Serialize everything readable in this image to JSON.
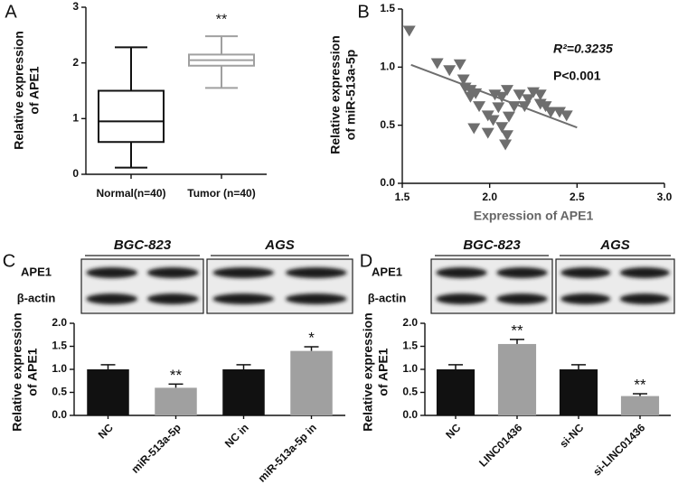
{
  "chart_data": [
    {
      "type": "box",
      "panel": "A",
      "categories": [
        "Normal(n=40)",
        "Tumor (n=40)"
      ],
      "boxes": [
        {
          "min": 0.12,
          "q1": 0.58,
          "median": 0.95,
          "q3": 1.5,
          "max": 2.28
        },
        {
          "min": 1.55,
          "q1": 1.95,
          "median": 2.05,
          "q3": 2.15,
          "max": 2.48
        }
      ],
      "colors": [
        "#111111",
        "#a0a0a0"
      ],
      "significance": [
        null,
        "**"
      ],
      "y_label": [
        "Relative expression",
        "of APE1"
      ],
      "ylim": [
        0,
        3
      ],
      "yticks": [
        0,
        1,
        2,
        3
      ]
    },
    {
      "type": "scatter",
      "panel": "B",
      "x": [
        1.54,
        1.7,
        1.83,
        1.77,
        1.85,
        1.86,
        1.89,
        1.92,
        1.89,
        1.94,
        1.99,
        1.91,
        1.99,
        2.02,
        2.05,
        2.07,
        2.1,
        2.11,
        2.07,
        2.1,
        2.09,
        2.14,
        2.17,
        2.2,
        2.22,
        2.25,
        2.29,
        2.32,
        2.35,
        2.4,
        2.44,
        2.29,
        2.03
      ],
      "y": [
        1.31,
        1.03,
        1.02,
        0.97,
        0.89,
        0.82,
        0.8,
        0.77,
        0.74,
        0.66,
        0.58,
        0.47,
        0.43,
        0.54,
        0.65,
        0.74,
        0.8,
        0.57,
        0.48,
        0.41,
        0.33,
        0.66,
        0.76,
        0.66,
        0.72,
        0.78,
        0.76,
        0.66,
        0.61,
        0.61,
        0.58,
        0.68,
        0.76
      ],
      "color": "#6e6e6e",
      "fit": {
        "x": [
          1.55,
          2.5
        ],
        "y": [
          1.02,
          0.48
        ],
        "color": "#6e6e6e"
      },
      "annotations": [
        "R²=0.3235",
        "P<0.001"
      ],
      "x_label": "Expression of APE1",
      "y_label": [
        "Relative expression",
        "of miR-513a-5p"
      ],
      "xlim": [
        1.5,
        3.0
      ],
      "xticks": [
        1.5,
        {
          "value": 2,
          "label": "2.0"
        },
        2.5,
        {
          "value": 3,
          "label": "3.0"
        }
      ],
      "ylim": [
        0,
        1.5
      ],
      "yticks": [
        {
          "value": 0,
          "label": "0.0"
        },
        0.5,
        {
          "value": 1,
          "label": "1.0"
        },
        1.5
      ]
    },
    {
      "type": "bar",
      "panel": "C",
      "blot": {
        "groups": [
          "BGC-823",
          "AGS"
        ],
        "rows": [
          "APE1",
          "β-actin"
        ]
      },
      "categories": [
        "NC",
        "miR-513a-5p",
        "NC in",
        "miR-513a-5p in"
      ],
      "values": [
        1.0,
        0.6,
        1.0,
        1.4
      ],
      "errors": [
        0.1,
        0.08,
        0.1,
        0.09
      ],
      "colors": [
        "#111111",
        "#a0a0a0",
        "#111111",
        "#a0a0a0"
      ],
      "significance": [
        null,
        "**",
        null,
        "*"
      ],
      "y_label": [
        "Relative expression",
        "of APE1"
      ],
      "ylim": [
        0,
        2
      ],
      "yticks": [
        {
          "value": 0,
          "label": "0.0"
        },
        0.5,
        {
          "value": 1,
          "label": "1.0"
        },
        1.5,
        {
          "value": 2,
          "label": "2.0"
        }
      ]
    },
    {
      "type": "bar",
      "panel": "D",
      "blot": {
        "groups": [
          "BGC-823",
          "AGS"
        ],
        "rows": [
          "APE1",
          "β-actin"
        ]
      },
      "categories": [
        "NC",
        "LINC01436",
        "si-NC",
        "si-LINC01436"
      ],
      "values": [
        1.0,
        1.55,
        1.0,
        0.42
      ],
      "errors": [
        0.1,
        0.1,
        0.1,
        0.05
      ],
      "colors": [
        "#111111",
        "#a0a0a0",
        "#111111",
        "#a0a0a0"
      ],
      "significance": [
        null,
        "**",
        null,
        "**"
      ],
      "y_label": [
        "Relative expression",
        "of APE1"
      ],
      "ylim": [
        0,
        2
      ],
      "yticks": [
        {
          "value": 0,
          "label": "0.0"
        },
        0.5,
        {
          "value": 1,
          "label": "1.0"
        },
        1.5,
        {
          "value": 2,
          "label": "2.0"
        }
      ]
    }
  ]
}
